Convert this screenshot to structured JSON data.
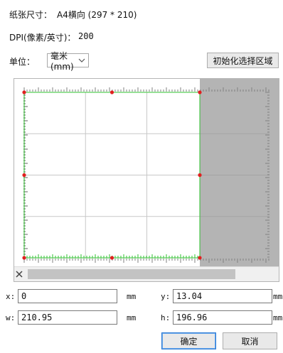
{
  "info": {
    "paper_size_label": "纸张尺寸：",
    "paper_size_value": "A4横向 (297 * 210)",
    "dpi_label": "DPI(像素/英寸)：",
    "dpi_value": "200",
    "unit_label": "单位：",
    "unit_value": "毫米 (mm)"
  },
  "toolbar": {
    "init_region_button": "初始化选择区域"
  },
  "fields": {
    "x_label": "x:",
    "x_value": "0",
    "x_unit": "mm",
    "y_label": "y:",
    "y_value": "13.04",
    "y_unit": "mm",
    "w_label": "w:",
    "w_value": "210.95",
    "w_unit": "mm",
    "h_label": "h:",
    "h_value": "196.96",
    "h_unit": "mm"
  },
  "dialog": {
    "ok_button": "确定",
    "cancel_button": "取消"
  },
  "icons": {
    "dropdown": "chevron-down-icon",
    "scroll_left": "arrow-left-icon",
    "scroll_right": "arrow-right-icon"
  },
  "colors": {
    "selection_border": "#2ec22e",
    "handle": "#e02020",
    "outside_area": "#b4b4b4",
    "grid": "#c8c8c8",
    "primary_button_border": "#2d7bd6"
  }
}
